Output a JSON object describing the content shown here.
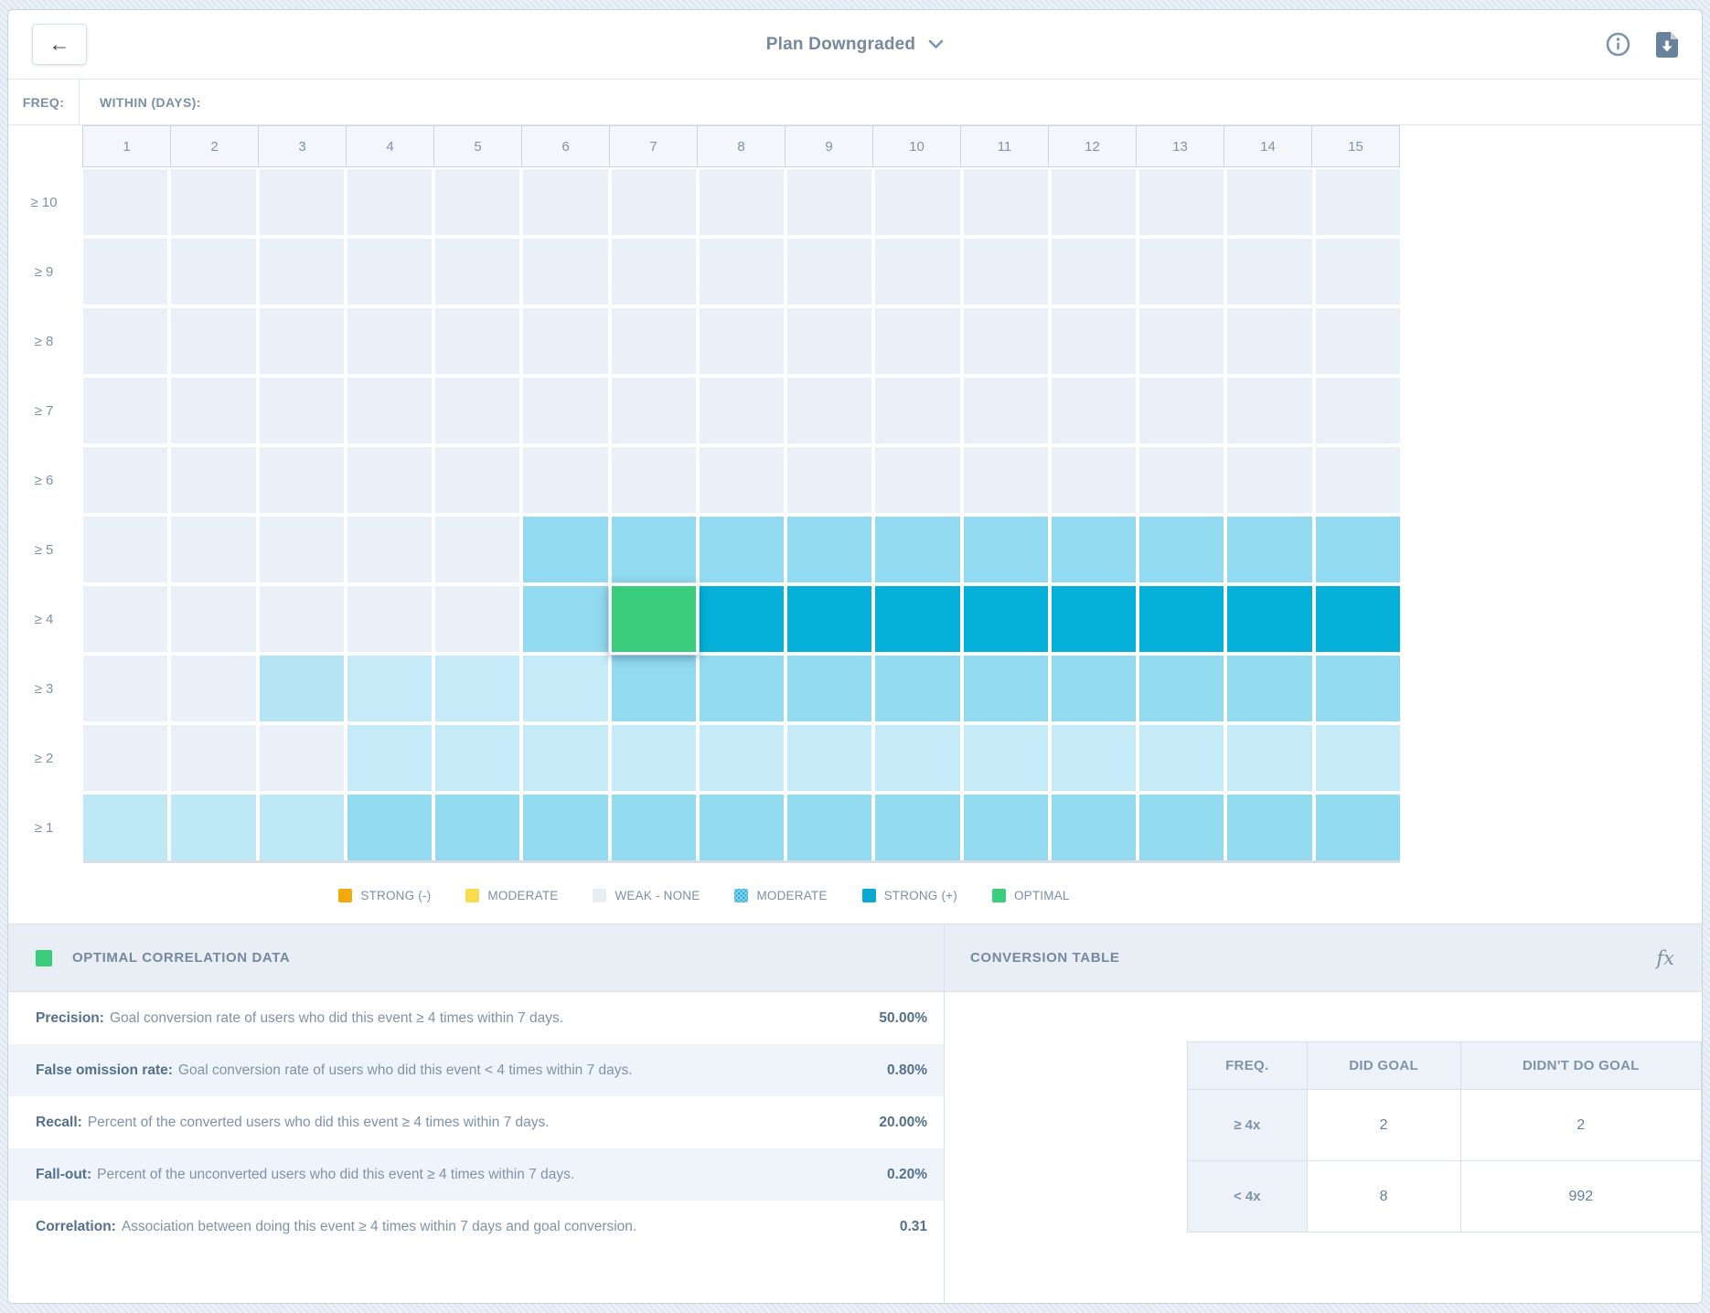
{
  "topbar": {
    "title": "Plan Downgraded",
    "back_glyph": "←"
  },
  "heatmap": {
    "freq_label": "FREQ:",
    "within_label": "WITHIN (DAYS):",
    "columns": [
      "1",
      "2",
      "3",
      "4",
      "5",
      "6",
      "7",
      "8",
      "9",
      "10",
      "11",
      "12",
      "13",
      "14",
      "15"
    ],
    "palette": {
      "w": "#e9f0f8",
      "l": "#c6ebf8",
      "lb": "#bfe8f6",
      "lc": "#b5e5f4",
      "m": "#92daf0",
      "s": "#05b1d8",
      "g": "#3bcd7e"
    },
    "rows": [
      {
        "label": "≥ 10",
        "cells": [
          "w",
          "w",
          "w",
          "w",
          "w",
          "w",
          "w",
          "w",
          "w",
          "w",
          "w",
          "w",
          "w",
          "w",
          "w"
        ]
      },
      {
        "label": "≥ 9",
        "cells": [
          "w",
          "w",
          "w",
          "w",
          "w",
          "w",
          "w",
          "w",
          "w",
          "w",
          "w",
          "w",
          "w",
          "w",
          "w"
        ]
      },
      {
        "label": "≥ 8",
        "cells": [
          "w",
          "w",
          "w",
          "w",
          "w",
          "w",
          "w",
          "w",
          "w",
          "w",
          "w",
          "w",
          "w",
          "w",
          "w"
        ]
      },
      {
        "label": "≥ 7",
        "cells": [
          "w",
          "w",
          "w",
          "w",
          "w",
          "w",
          "w",
          "w",
          "w",
          "w",
          "w",
          "w",
          "w",
          "w",
          "w"
        ]
      },
      {
        "label": "≥ 6",
        "cells": [
          "w",
          "w",
          "w",
          "w",
          "w",
          "w",
          "w",
          "w",
          "w",
          "w",
          "w",
          "w",
          "w",
          "w",
          "w"
        ]
      },
      {
        "label": "≥ 5",
        "cells": [
          "w",
          "w",
          "w",
          "w",
          "w",
          "m",
          "m",
          "m",
          "m",
          "m",
          "m",
          "m",
          "m",
          "m",
          "m"
        ]
      },
      {
        "label": "≥ 4",
        "cells": [
          "w",
          "w",
          "w",
          "w",
          "w",
          "m",
          "g",
          "s",
          "s",
          "s",
          "s",
          "s",
          "s",
          "s",
          "s"
        ]
      },
      {
        "label": "≥ 3",
        "cells": [
          "w",
          "w",
          "lc",
          "l",
          "l",
          "l",
          "m",
          "m",
          "m",
          "m",
          "m",
          "m",
          "m",
          "m",
          "m"
        ]
      },
      {
        "label": "≥ 2",
        "cells": [
          "w",
          "w",
          "w",
          "l",
          "l",
          "l",
          "l",
          "l",
          "l",
          "l",
          "l",
          "l",
          "l",
          "l",
          "l"
        ]
      },
      {
        "label": "≥ 1",
        "cells": [
          "lb",
          "lb",
          "lb",
          "m",
          "m",
          "m",
          "m",
          "m",
          "m",
          "m",
          "m",
          "m",
          "m",
          "m",
          "m"
        ]
      }
    ],
    "selected_cell": {
      "row_label": "≥ 4",
      "column": "7"
    }
  },
  "legend": {
    "items": [
      {
        "label": "STRONG (-)",
        "color": "#f2a90c",
        "pattern": false
      },
      {
        "label": "MODERATE",
        "color": "#f8db4e",
        "pattern": false
      },
      {
        "label": "WEAK - NONE",
        "color": "#e7eef6",
        "pattern": false
      },
      {
        "label": "MODERATE",
        "color": "#7fd3ec",
        "pattern": true
      },
      {
        "label": "STRONG (+)",
        "color": "#09a9d1",
        "pattern": false
      },
      {
        "label": "OPTIMAL",
        "color": "#3bcd7e",
        "pattern": false
      }
    ]
  },
  "optimal_panel": {
    "title": "OPTIMAL CORRELATION DATA",
    "swatch_color": "#3bcd7e",
    "metrics": [
      {
        "name": "Precision:",
        "description": "Goal conversion rate of users who did this event ≥ 4 times within 7 days.",
        "value": "50.00%"
      },
      {
        "name": "False omission rate:",
        "description": "Goal conversion rate of users who did this event < 4 times within 7 days.",
        "value": "0.80%"
      },
      {
        "name": "Recall:",
        "description": "Percent of the converted users who did this event ≥ 4 times within 7 days.",
        "value": "20.00%"
      },
      {
        "name": "Fall-out:",
        "description": "Percent of the unconverted users who did this event ≥ 4 times within 7 days.",
        "value": "0.20%"
      },
      {
        "name": "Correlation:",
        "description": "Association between doing this event ≥ 4 times within 7 days and goal conversion.",
        "value": "0.31"
      }
    ]
  },
  "conversion_panel": {
    "title": "CONVERSION TABLE",
    "fx_label": "fx",
    "headers": [
      "FREQ.",
      "DID GOAL",
      "DIDN'T DO GOAL"
    ],
    "rows": [
      {
        "freq": "≥ 4x",
        "did": "2",
        "didnt": "2"
      },
      {
        "freq": "< 4x",
        "did": "8",
        "didnt": "992"
      }
    ]
  }
}
